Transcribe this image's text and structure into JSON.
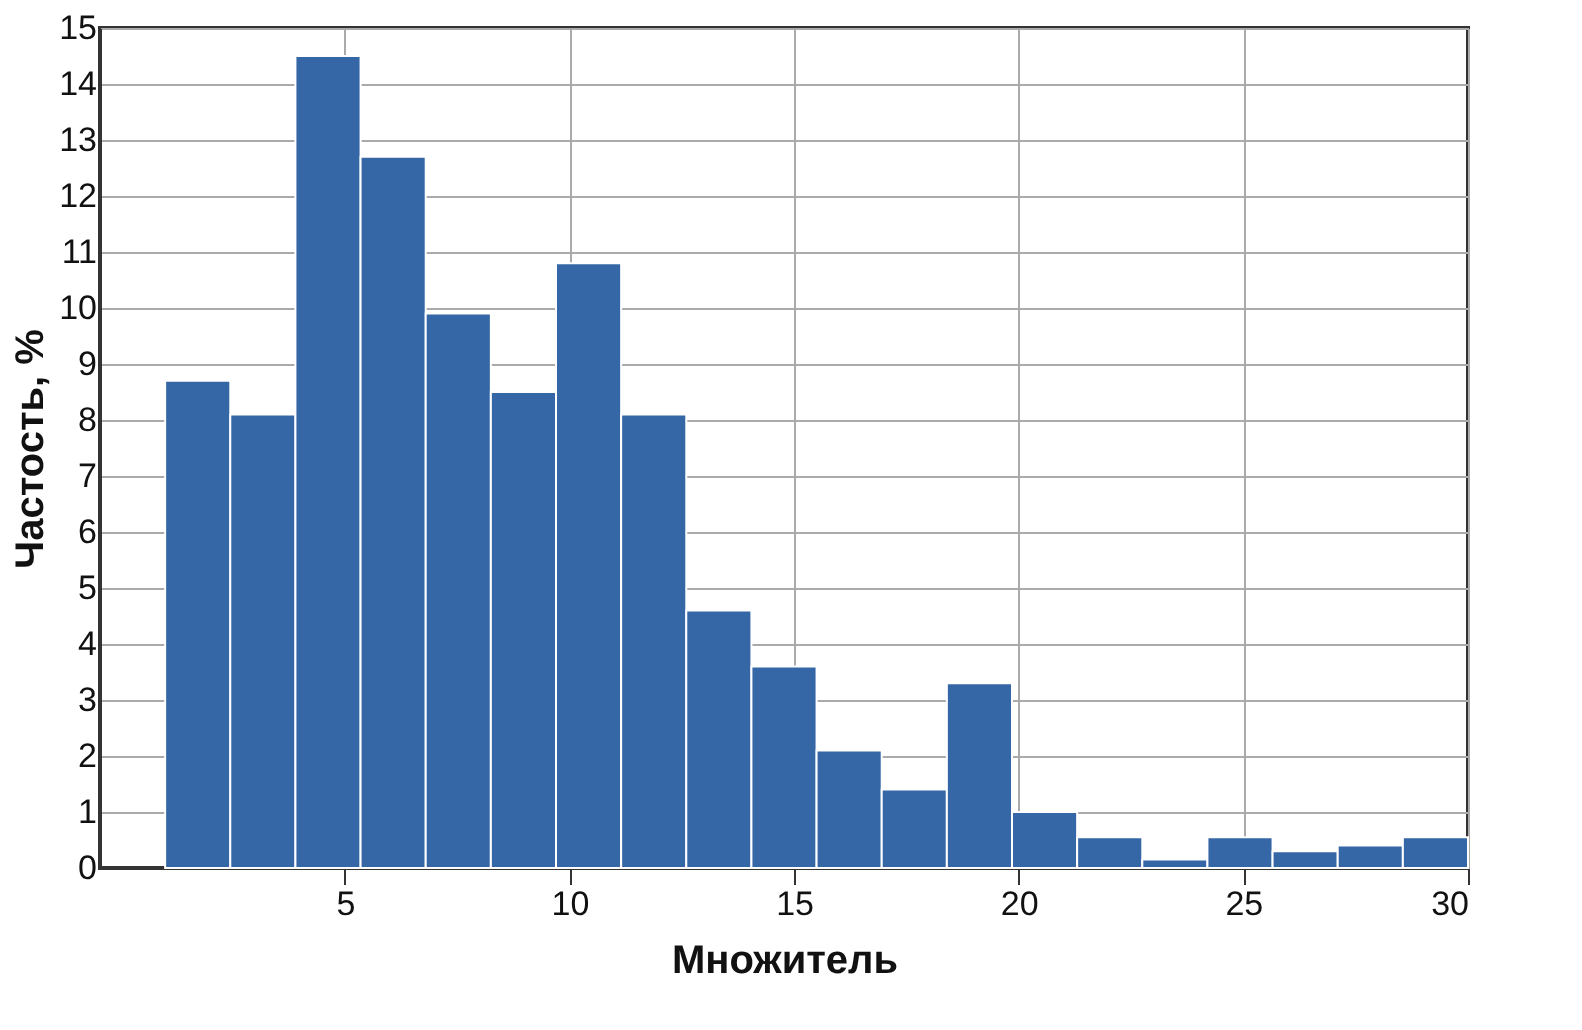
{
  "chart_data": {
    "type": "histogram",
    "xlabel": "Множитель",
    "ylabel": "Частость, %",
    "bins": [
      1,
      2.45,
      3.9,
      5.35,
      6.8,
      8.25,
      9.7,
      11.15,
      12.6,
      14.05,
      15.5,
      16.95,
      18.4,
      19.85,
      21.3,
      22.75,
      24.2,
      25.65,
      27.1,
      28.55,
      30
    ],
    "values": [
      8.7,
      8.1,
      14.5,
      12.7,
      9.9,
      8.5,
      10.8,
      8.1,
      4.6,
      3.6,
      2.1,
      1.4,
      3.3,
      1.0,
      0.55,
      0.15,
      0.55,
      0.3,
      0.4,
      0.55
    ],
    "color": "#3567a6",
    "xlim": [
      -0.45,
      30
    ],
    "xticks": [
      5,
      10,
      15,
      20,
      25,
      30
    ],
    "ylim": [
      0,
      15
    ],
    "yticks": [
      0,
      1,
      2,
      3,
      4,
      5,
      6,
      7,
      8,
      9,
      10,
      11,
      12,
      13,
      14,
      15
    ],
    "grid": true
  }
}
